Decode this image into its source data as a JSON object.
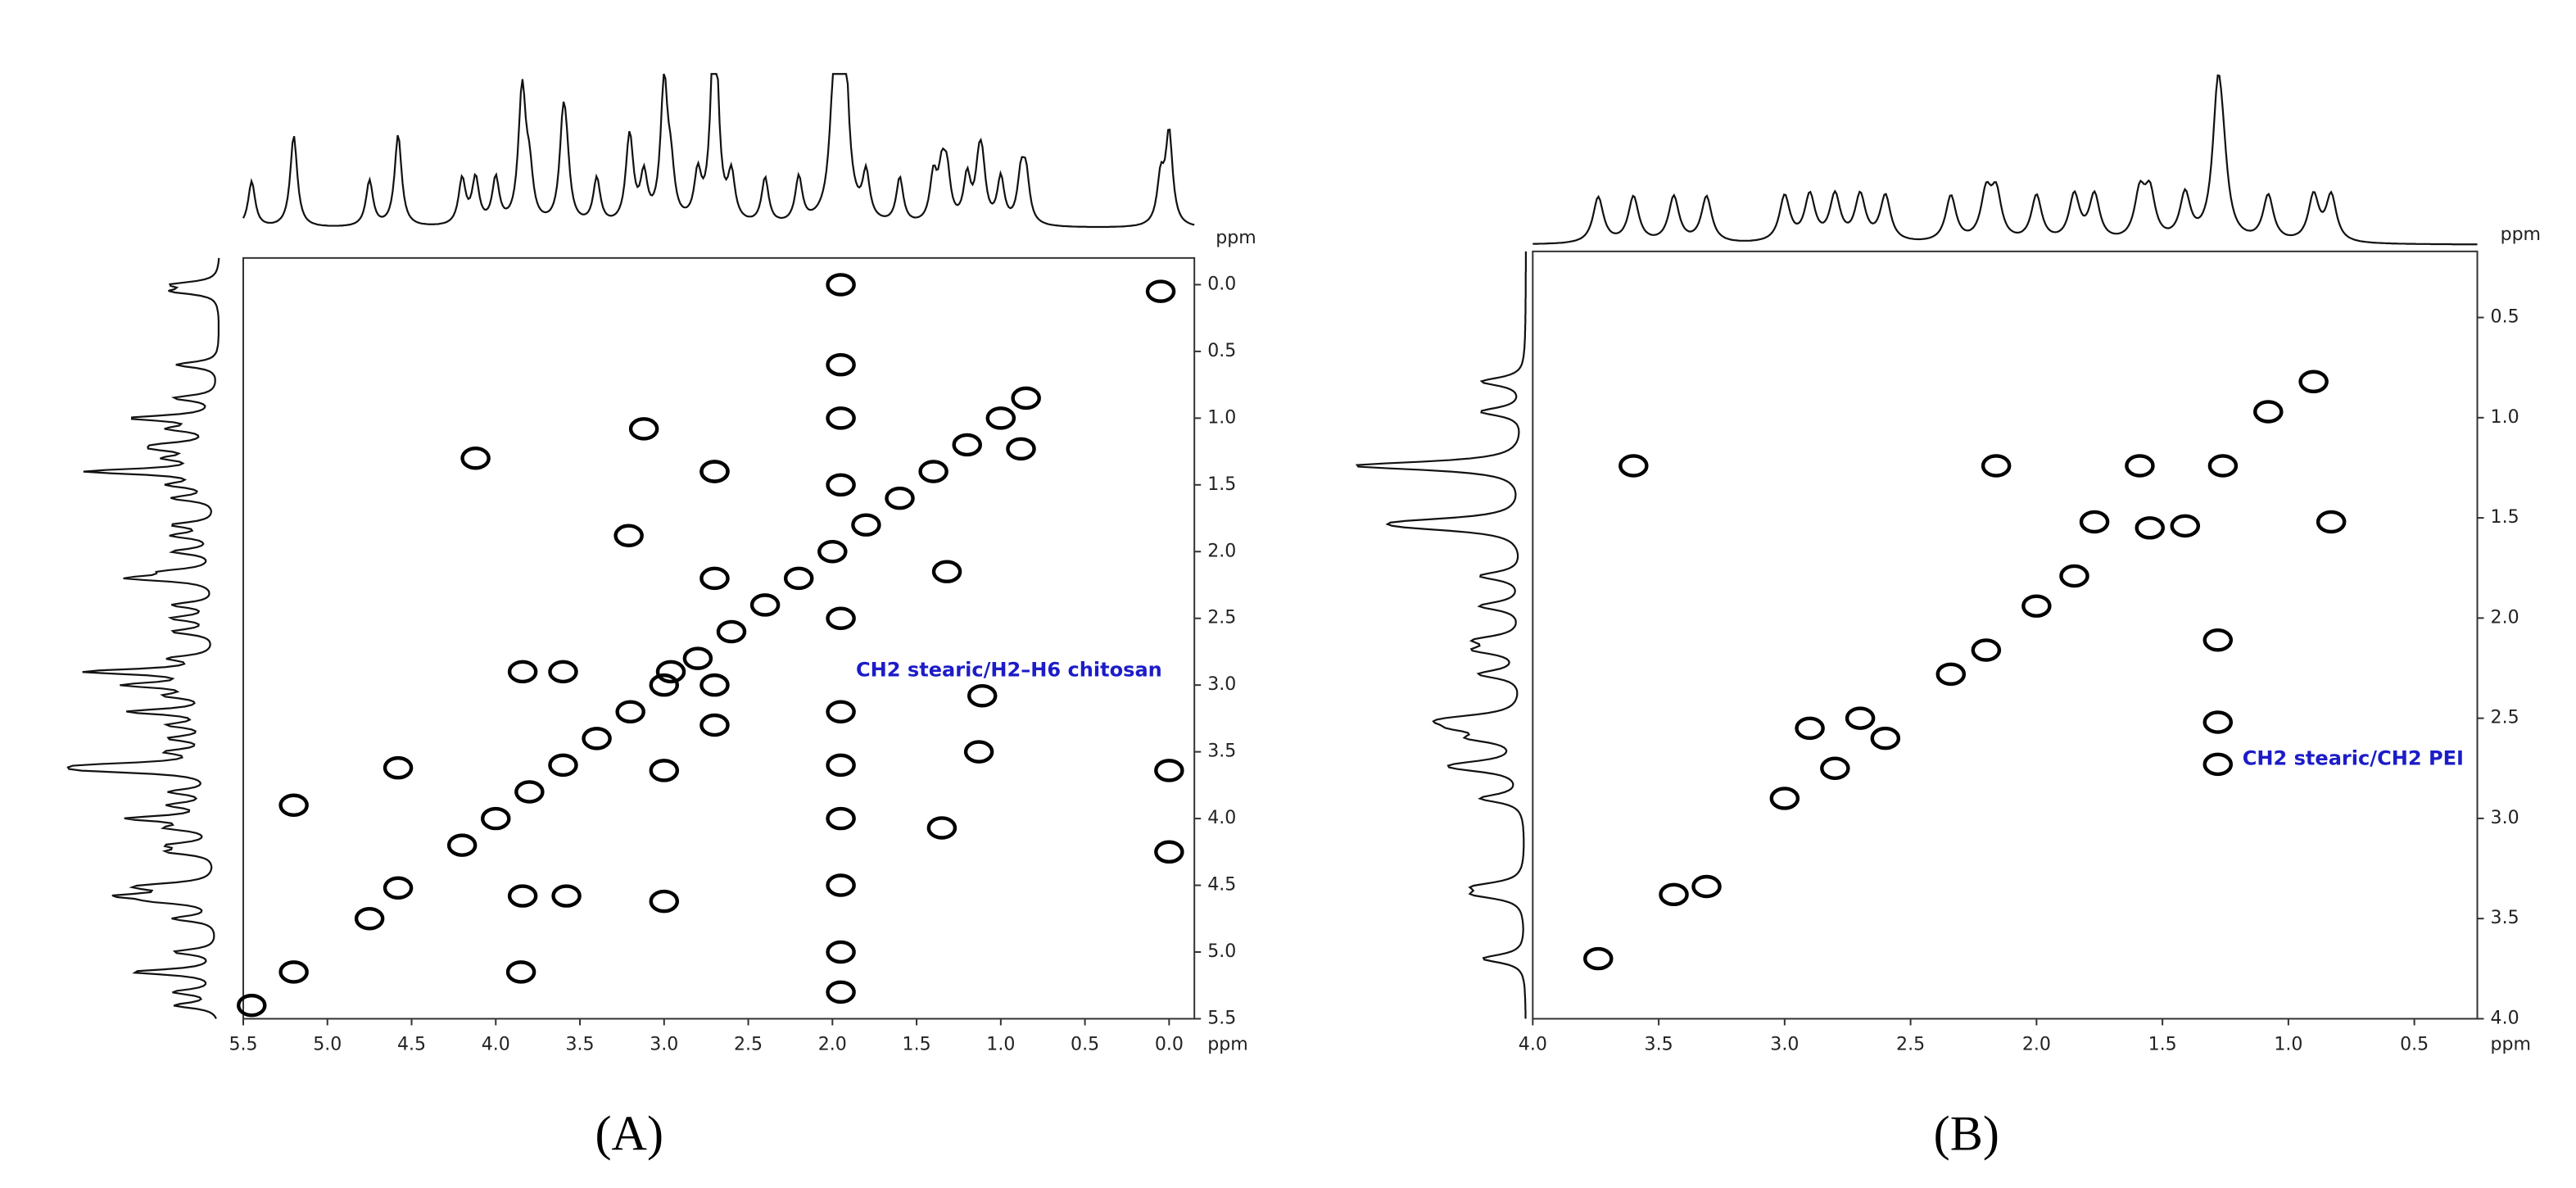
{
  "chart_data": [
    {
      "type": "contour",
      "caption": "(A)",
      "annotation": "CH2 stearic/H2–H6 chitosan",
      "annotation_color": "#1c1cc8",
      "color": "#000000",
      "x_label": "ppm",
      "y_label": "ppm",
      "xlim": [
        5.5,
        -0.15
      ],
      "ylim": [
        5.5,
        -0.2
      ],
      "xticks": [
        5.5,
        {
          "value": 5,
          "label": "5.0"
        },
        4.5,
        {
          "value": 4,
          "label": "4.0"
        },
        3.5,
        {
          "value": 3,
          "label": "3.0"
        },
        2.5,
        {
          "value": 2,
          "label": "2.0"
        },
        1.5,
        {
          "value": 1,
          "label": "1.0"
        },
        0.5,
        {
          "value": 0,
          "label": "0.0"
        }
      ],
      "yticks": [
        {
          "value": 0,
          "label": "0.0"
        },
        0.5,
        {
          "value": 1,
          "label": "1.0"
        },
        1.5,
        {
          "value": 2,
          "label": "2.0"
        },
        2.5,
        {
          "value": 3,
          "label": "3.0"
        },
        3.5,
        {
          "value": 4,
          "label": "4.0"
        },
        4.5,
        {
          "value": 5,
          "label": "5.0"
        },
        5.5
      ],
      "peaks": {
        "x": [
          4.2,
          4.0,
          3.8,
          3.6,
          3.4,
          3.2,
          3.0,
          2.8,
          2.6,
          2.4,
          2.2,
          2.0,
          1.8,
          1.6,
          1.4,
          1.2,
          1.0,
          0.85,
          5.45,
          5.2,
          4.58,
          0.05,
          4.12,
          3.21,
          3.84,
          3.6,
          2.96,
          4.58,
          3.0,
          3.84,
          3.58,
          3.0,
          0.88,
          1.32,
          1.11,
          1.35,
          3.12,
          0.0,
          0.0,
          2.7,
          5.2,
          4.75,
          3.85,
          1.13,
          1.95,
          1.95,
          1.95,
          1.95,
          1.95,
          1.95,
          1.95,
          1.95,
          1.95,
          1.95,
          1.95,
          2.7,
          2.7,
          2.7,
          2.7
        ],
        "y": [
          4.2,
          4.0,
          3.8,
          3.6,
          3.4,
          3.2,
          3.0,
          2.8,
          2.6,
          2.4,
          2.2,
          2.0,
          1.8,
          1.6,
          1.4,
          1.2,
          1.0,
          0.85,
          5.4,
          5.15,
          4.52,
          0.05,
          1.3,
          1.88,
          2.9,
          2.9,
          2.9,
          3.62,
          3.64,
          4.58,
          4.58,
          4.62,
          1.23,
          2.15,
          3.08,
          4.07,
          1.08,
          3.64,
          4.25,
          1.4,
          3.9,
          4.75,
          5.15,
          3.5,
          0.0,
          0.6,
          1.0,
          1.5,
          2.5,
          3.2,
          3.6,
          4.0,
          4.5,
          5.0,
          5.3,
          1.4,
          2.2,
          3.0,
          3.3
        ]
      }
    },
    {
      "type": "contour",
      "caption": "(B)",
      "annotation": "CH2 stearic/CH2 PEI",
      "annotation_color": "#1c1cc8",
      "color": "#000000",
      "x_label": "ppm",
      "y_label": "ppm",
      "xlim": [
        4.0,
        0.25
      ],
      "ylim": [
        4.0,
        0.17
      ],
      "xticks": [
        {
          "value": 4,
          "label": "4.0"
        },
        3.5,
        {
          "value": 3,
          "label": "3.0"
        },
        2.5,
        {
          "value": 2,
          "label": "2.0"
        },
        1.5,
        {
          "value": 1,
          "label": "1.0"
        },
        0.5
      ],
      "yticks": [
        0.5,
        {
          "value": 1,
          "label": "1.0"
        },
        1.5,
        {
          "value": 2,
          "label": "2.0"
        },
        2.5,
        {
          "value": 3,
          "label": "3.0"
        },
        3.5,
        {
          "value": 4,
          "label": "4.0"
        }
      ],
      "peaks": {
        "x": [
          0.9,
          1.26,
          1.59,
          2.16,
          1.55,
          2.0,
          1.85,
          2.2,
          2.34,
          1.28,
          1.28,
          1.28,
          3.0,
          2.8,
          2.6,
          2.9,
          2.7,
          3.31,
          3.44,
          3.74,
          1.41,
          0.83,
          1.08,
          3.6,
          1.77
        ],
        "y": [
          0.82,
          1.24,
          1.24,
          1.24,
          1.55,
          1.94,
          1.79,
          2.16,
          2.28,
          2.11,
          2.52,
          2.73,
          2.9,
          2.75,
          2.6,
          2.55,
          2.5,
          3.34,
          3.38,
          3.7,
          1.54,
          1.52,
          0.97,
          1.24,
          1.52
        ]
      }
    }
  ]
}
